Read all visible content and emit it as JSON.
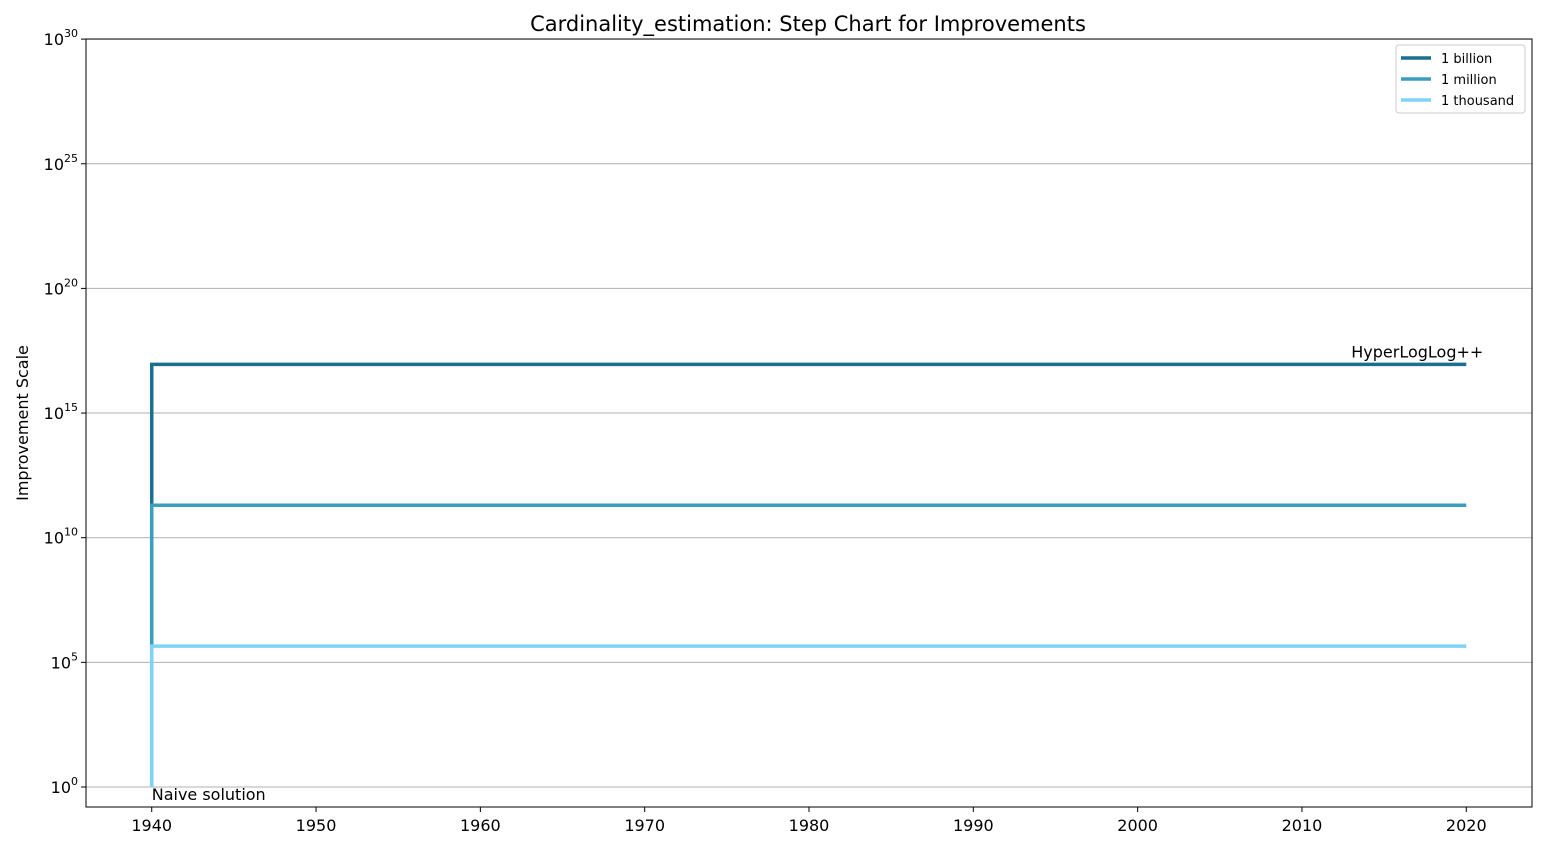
{
  "chart_data": {
    "type": "line",
    "step": true,
    "title": "Cardinality_estimation: Step Chart for Improvements",
    "xlabel": "",
    "ylabel": "Improvement Scale",
    "xlim": [
      1936,
      2024
    ],
    "ylim_exp": [
      -0.8,
      30
    ],
    "yscale": "log",
    "x_ticks": [
      1940,
      1950,
      1960,
      1970,
      1980,
      1990,
      2000,
      2010,
      2020
    ],
    "y_ticks": [
      {
        "base": "10",
        "exp": "0",
        "value": 0
      },
      {
        "base": "10",
        "exp": "5",
        "value": 5
      },
      {
        "base": "10",
        "exp": "10",
        "value": 10
      },
      {
        "base": "10",
        "exp": "15",
        "value": 15
      },
      {
        "base": "10",
        "exp": "20",
        "value": 20
      },
      {
        "base": "10",
        "exp": "25",
        "value": 25
      },
      {
        "base": "10",
        "exp": "30",
        "value": 30
      }
    ],
    "grid": "horizontal",
    "legend_position": "top-right",
    "series": [
      {
        "name": "1 billion",
        "color": "#1b6f8f",
        "x": [
          1940,
          1940,
          2020
        ],
        "y_exp": [
          0,
          16.95,
          16.95
        ]
      },
      {
        "name": "1 million",
        "color": "#3a9fbf",
        "x": [
          1940,
          1940,
          2020
        ],
        "y_exp": [
          0,
          11.3,
          11.3
        ]
      },
      {
        "name": "1 thousand",
        "color": "#7dd4f5",
        "x": [
          1940,
          1940,
          2020
        ],
        "y_exp": [
          0,
          5.65,
          5.65
        ]
      }
    ],
    "annotations": [
      {
        "text": "Naive solution",
        "x": 1940,
        "y_exp": 0,
        "anchor": "below-right"
      },
      {
        "text": "HyperLogLog++",
        "x": 2013,
        "y_exp": 16.95,
        "anchor": "above"
      }
    ]
  }
}
